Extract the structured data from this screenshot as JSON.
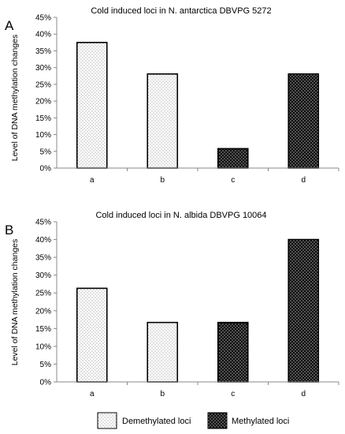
{
  "chart_data": [
    {
      "panel": "A",
      "type": "bar",
      "title": "Cold induced loci in N. antarctica DBVPG 5272",
      "ylabel": "Level of DNA methylation changes",
      "xlabel": "",
      "categories": [
        "a",
        "b",
        "c",
        "d"
      ],
      "values": [
        37.5,
        28.1,
        5.8,
        28.1
      ],
      "value_unit": "%",
      "bar_types": [
        "Demethylated loci",
        "Demethylated loci",
        "Methylated loci",
        "Methylated loci"
      ],
      "ylim": [
        0,
        45
      ],
      "yticks": [
        "0%",
        "5%",
        "10%",
        "15%",
        "20%",
        "25%",
        "30%",
        "35%",
        "40%",
        "45%"
      ],
      "grid": false
    },
    {
      "panel": "B",
      "type": "bar",
      "title": "Cold induced loci in N. albida DBVPG 10064",
      "ylabel": "Level of DNA methylation changes",
      "xlabel": "",
      "categories": [
        "a",
        "b",
        "c",
        "d"
      ],
      "values": [
        26.3,
        16.7,
        16.7,
        40.0
      ],
      "value_unit": "%",
      "bar_types": [
        "Demethylated loci",
        "Demethylated loci",
        "Methylated loci",
        "Methylated loci"
      ],
      "ylim": [
        0,
        45
      ],
      "yticks": [
        "0%",
        "5%",
        "10%",
        "15%",
        "20%",
        "25%",
        "30%",
        "35%",
        "40%",
        "45%"
      ],
      "grid": false
    }
  ],
  "legend": {
    "placement": "bottom",
    "items": [
      {
        "label": "Demethylated loci",
        "style": "light-dotted"
      },
      {
        "label": "Methylated loci",
        "style": "dark-dotted"
      }
    ]
  }
}
